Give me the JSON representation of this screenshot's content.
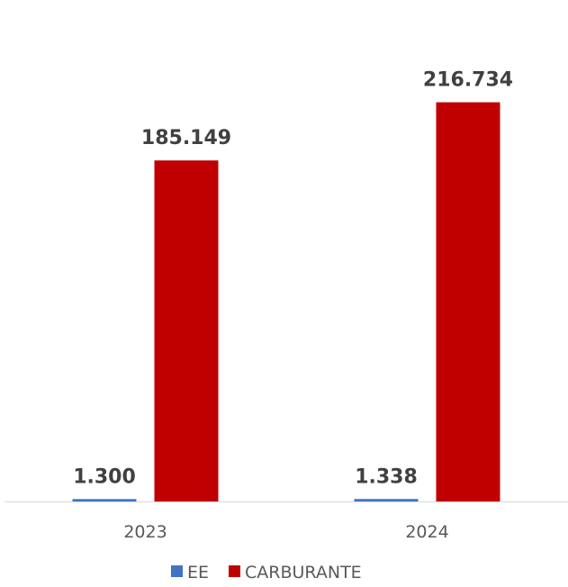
{
  "chart_data": {
    "type": "bar",
    "categories": [
      "2023",
      "2024"
    ],
    "series": [
      {
        "name": "EE",
        "values": [
          1300,
          1338
        ],
        "labels": [
          "1.300",
          "1.338"
        ],
        "color": "#4472C4"
      },
      {
        "name": "CARBURANTE",
        "values": [
          185149,
          216734
        ],
        "labels": [
          "185.149",
          "216.734"
        ],
        "color": "#C00000"
      }
    ],
    "title": "",
    "xlabel": "",
    "ylabel": "",
    "ylim": [
      0,
      240000
    ],
    "grid": false,
    "legend": "bottom"
  }
}
